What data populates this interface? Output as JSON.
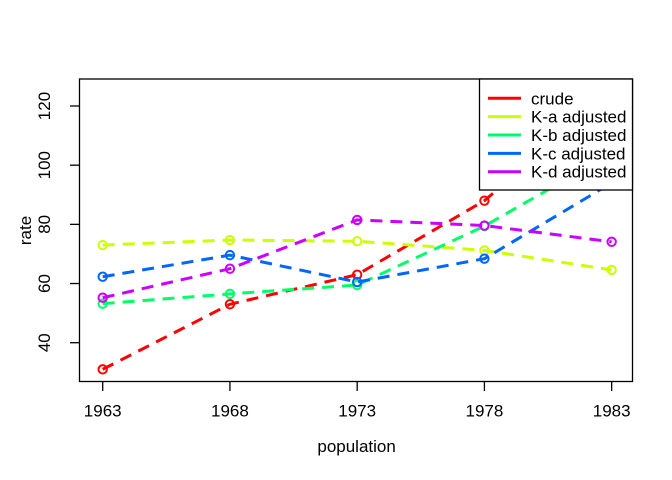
{
  "figure": {
    "background": "#ffffff",
    "border_color": "#000000"
  },
  "chart_data": {
    "type": "line",
    "title": "",
    "xlabel": "population",
    "ylabel": "rate",
    "x": [
      1963,
      1968,
      1973,
      1978,
      1983
    ],
    "x_tick_labels": [
      "1963",
      "1968",
      "1973",
      "1978",
      "1983"
    ],
    "y_ticks": [
      40,
      60,
      80,
      100,
      120
    ],
    "y_tick_labels": [
      "40",
      "60",
      "80",
      "100",
      "120"
    ],
    "xlim": [
      1962.2,
      1983.8
    ],
    "ylim": [
      27,
      129
    ],
    "grid": false,
    "line_style": "dashed",
    "marker": "open-circle",
    "legend_position": "top-right",
    "series": [
      {
        "name": "crude",
        "color": "#FF0000",
        "values": [
          31,
          53,
          63,
          88,
          125
        ]
      },
      {
        "name": "K-a adjusted",
        "color": "#CCFF00",
        "values": [
          73,
          74.7,
          74.3,
          71.2,
          64.6
        ]
      },
      {
        "name": "K-b adjusted",
        "color": "#00FF66",
        "values": [
          53.2,
          56.5,
          59.5,
          79.4,
          104
        ]
      },
      {
        "name": "K-c adjusted",
        "color": "#0066FF",
        "values": [
          62.3,
          69.6,
          60.5,
          68.4,
          94
        ]
      },
      {
        "name": "K-d adjusted",
        "color": "#CC00FF",
        "values": [
          55.2,
          65,
          81.5,
          79.6,
          74.1
        ]
      }
    ]
  }
}
